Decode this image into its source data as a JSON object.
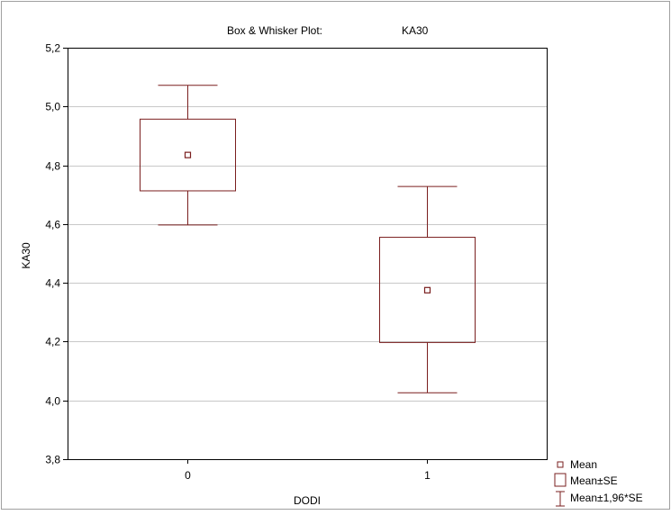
{
  "chart_data": {
    "type": "box",
    "title": "Box & Whisker Plot:",
    "subtitle": "KA30",
    "xlabel": "DODI",
    "ylabel": "KA30",
    "categories": [
      "0",
      "1"
    ],
    "ylim": [
      3.8,
      5.2
    ],
    "yticks": [
      "3,8",
      "4,0",
      "4,2",
      "4,4",
      "4,6",
      "4,8",
      "5,0",
      "5,2"
    ],
    "ytick_values": [
      3.8,
      4.0,
      4.2,
      4.4,
      4.6,
      4.8,
      5.0,
      5.2
    ],
    "grid": true,
    "legend_position": "bottom-right",
    "series": [
      {
        "category": "0",
        "mean": 4.835,
        "se_low": 4.713,
        "se_high": 4.957,
        "ci_low": 4.597,
        "ci_high": 5.072
      },
      {
        "category": "1",
        "mean": 4.375,
        "se_low": 4.197,
        "se_high": 4.555,
        "ci_low": 4.026,
        "ci_high": 4.728
      }
    ],
    "legend": [
      "Mean",
      "Mean±SE",
      "Mean±1,96*SE"
    ],
    "colors": {
      "series": "#7a1f1f",
      "grid": "#c8c8c8",
      "frame": "#000000"
    }
  }
}
